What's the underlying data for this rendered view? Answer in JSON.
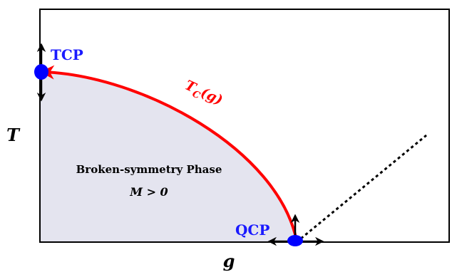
{
  "axes": {
    "x_label": "g",
    "y_label": "T"
  },
  "points": {
    "tcp_label": "TCP",
    "qcp_label": "QCP"
  },
  "curve": {
    "label_main": "T",
    "label_sub": "C",
    "label_arg": "(g)"
  },
  "phase": {
    "name": "Broken-symmetry Phase",
    "condition": "M > 0"
  },
  "colors": {
    "critical_line": "#ff0000",
    "critical_points": "#0000ff",
    "ordered_region": "#e4e4ef",
    "crossover_line": "#000000"
  }
}
